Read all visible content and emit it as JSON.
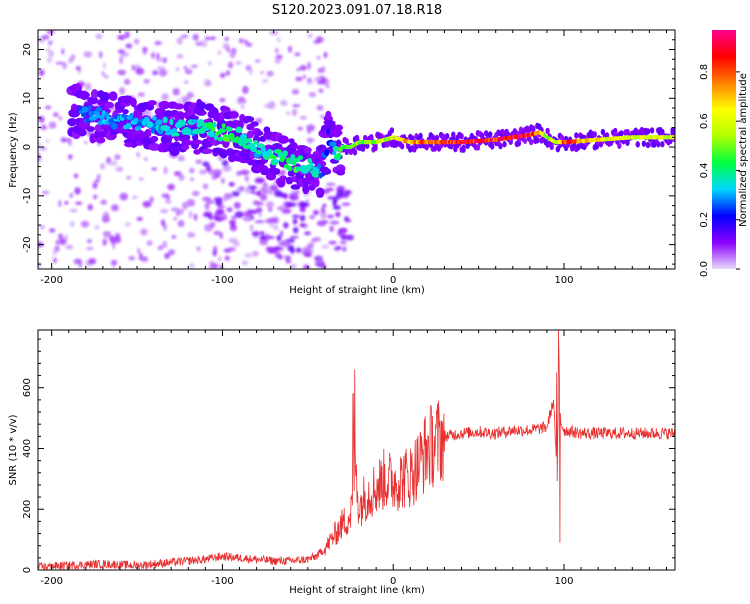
{
  "title": "S120.2023.091.07.18.R18",
  "colorbar": {
    "label": "Normalized spectral amplitude",
    "ticks": [
      "0.0",
      "0.2",
      "0.4",
      "0.6",
      "0.8"
    ],
    "tick_values": [
      0.0,
      0.2,
      0.4,
      0.6,
      0.8
    ],
    "range": [
      0,
      0.97
    ],
    "colors": [
      "#e8d8f8",
      "#8a00ff",
      "#0000ff",
      "#00d8ff",
      "#00ff40",
      "#b0ff00",
      "#ffff00",
      "#ff8000",
      "#ff0000",
      "#ff0090"
    ]
  },
  "chart_data": [
    {
      "type": "heatmap",
      "title": "",
      "xlabel": "Height of straight line (km)",
      "ylabel": "Frequency (Hz)",
      "xlim": [
        -208,
        165
      ],
      "ylim": [
        -25,
        24
      ],
      "x_ticks": [
        -200,
        -100,
        0,
        100
      ],
      "y_ticks": [
        -20,
        -10,
        0,
        10,
        20
      ],
      "ridge": {
        "x": [
          -190,
          -170,
          -150,
          -130,
          -115,
          -100,
          -90,
          -80,
          -70,
          -60,
          -50,
          -42,
          -38,
          -34,
          -30,
          -25,
          -20,
          -10,
          0,
          10,
          20,
          40,
          60,
          70,
          80,
          86,
          90,
          95,
          100,
          120,
          140,
          165
        ],
        "y": [
          8,
          6,
          5,
          4,
          4,
          3,
          2,
          0,
          -2,
          -3,
          -4,
          -5,
          2,
          -2,
          0,
          0,
          1,
          1,
          2,
          1,
          1,
          1,
          1.5,
          2,
          2.5,
          3,
          2,
          1,
          1,
          1.5,
          2,
          2
        ],
        "amplitude": [
          0.25,
          0.3,
          0.3,
          0.35,
          0.35,
          0.45,
          0.4,
          0.35,
          0.4,
          0.45,
          0.4,
          0.3,
          0.2,
          0.35,
          0.45,
          0.5,
          0.5,
          0.55,
          0.6,
          0.75,
          0.85,
          0.9,
          0.85,
          0.9,
          0.85,
          0.7,
          0.5,
          0.6,
          0.85,
          0.65,
          0.6,
          0.6
        ]
      }
    },
    {
      "type": "line",
      "title": "",
      "xlabel": "Height of straight line (km)",
      "ylabel": "SNR (10 * v/v)",
      "xlim": [
        -208,
        165
      ],
      "ylim": [
        0,
        790
      ],
      "x_ticks": [
        -200,
        -100,
        0,
        100
      ],
      "y_ticks": [
        0,
        200,
        400,
        600
      ],
      "color": "#e83030",
      "series": [
        {
          "x": [
            -208,
            -190,
            -170,
            -150,
            -130,
            -110,
            -100,
            -90,
            -80,
            -70,
            -60,
            -50,
            -45,
            -40,
            -35,
            -30,
            -25,
            -22,
            -20,
            -18,
            -15,
            -10,
            -5,
            0,
            5,
            10,
            15,
            20,
            25,
            30,
            40,
            50,
            60,
            70,
            80,
            90,
            94,
            96,
            97,
            98,
            100,
            110,
            120,
            130,
            140,
            150,
            165
          ],
          "y": [
            10,
            15,
            20,
            15,
            25,
            35,
            45,
            40,
            35,
            30,
            30,
            35,
            45,
            70,
            110,
            150,
            180,
            330,
            200,
            230,
            250,
            270,
            300,
            290,
            300,
            310,
            350,
            400,
            420,
            440,
            450,
            455,
            450,
            460,
            460,
            470,
            560,
            280,
            700,
            490,
            460,
            450,
            450,
            450,
            450,
            450,
            450
          ],
          "spikes": [
            {
              "x": -22.5,
              "y": 660
            },
            {
              "x": -23.5,
              "y": 580
            },
            {
              "x": 96.8,
              "y": 790
            },
            {
              "x": 97.6,
              "y": 90
            },
            {
              "x": 95.8,
              "y": 650
            }
          ]
        }
      ]
    }
  ]
}
